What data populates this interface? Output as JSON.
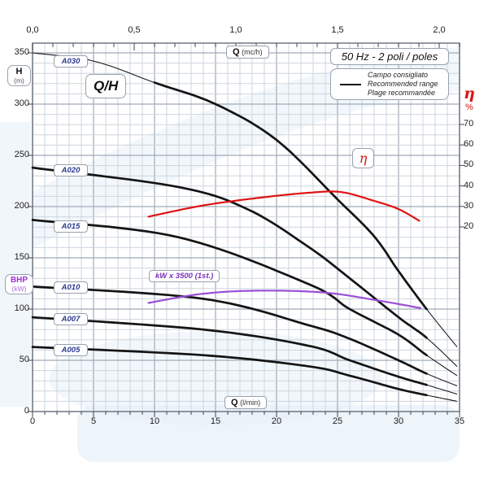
{
  "labels": {
    "qh": "Q/H",
    "h_main": "H",
    "h_sub": "(m)",
    "bhp_main": "BHP",
    "bhp_sub": "(kW)",
    "q_top_main": "Q",
    "q_top_sub": "(mc/h)",
    "q_bottom_main": "Q",
    "q_bottom_sub": "(l/min)",
    "title_box": "50 Hz - 2 poli / poles",
    "legend": {
      "line1": "Campo consigliato",
      "line2": "Recommended range",
      "line3": "Plage recommandée"
    },
    "eta_symbol": "η",
    "eta_percent": "%",
    "eta_badge": "η",
    "kw_badge": "kW x 3500 (1st.)"
  },
  "axes": {
    "top": {
      "unit": "mc/h",
      "ticks": [
        "0,0",
        "0,5",
        "1,0",
        "1,5",
        "2,0"
      ],
      "values": [
        0,
        0.5,
        1.0,
        1.5,
        2.0
      ]
    },
    "bottom": {
      "unit": "l/min",
      "ticks": [
        "0",
        "5",
        "10",
        "15",
        "20",
        "25",
        "30",
        "35"
      ],
      "values": [
        0,
        5,
        10,
        15,
        20,
        25,
        30,
        35
      ]
    },
    "left": {
      "unit": "m",
      "ticks": [
        "350",
        "300",
        "250",
        "200",
        "150",
        "100",
        "50",
        "0"
      ],
      "values": [
        350,
        300,
        250,
        200,
        150,
        100,
        50,
        0
      ]
    },
    "right": {
      "unit": "%",
      "ticks": [
        "70",
        "60",
        "50",
        "40",
        "30",
        "20"
      ],
      "values": [
        70,
        60,
        50,
        40,
        30,
        20
      ]
    }
  },
  "colors": {
    "curve_black": "#141414",
    "eta_red": "#e01212",
    "power_purple": "#9a4fd6",
    "model_navy": "#2b3990",
    "bhp_purple": "#9d2fd4",
    "grid_minor": "#cdd5de",
    "grid_major": "#9fabb9",
    "border": "#6e7884",
    "watermark_blue": "#e7f0f8"
  },
  "chart_data": {
    "type": "line",
    "title": "50 Hz - 2 poli / poles",
    "legend": [
      "Campo consigliato",
      "Recommended range",
      "Plage recommandée"
    ],
    "x_axis": {
      "label": "Q (l/min)",
      "range": [
        0,
        35
      ],
      "grid": true
    },
    "x_axis2": {
      "label": "Q (mc/h)",
      "range": [
        0,
        2.1
      ]
    },
    "y_axis": {
      "label": "H (m)",
      "range": [
        0,
        360
      ],
      "secondary_label": "BHP (kW)"
    },
    "y2_axis": {
      "label": "η %",
      "range": [
        20,
        70
      ]
    },
    "series": [
      {
        "name": "A030",
        "unit": "Q(l/min) vs H(m)",
        "thick_range": [
          10,
          32.3
        ],
        "points": [
          [
            0,
            350
          ],
          [
            5,
            342
          ],
          [
            10,
            321
          ],
          [
            15,
            300
          ],
          [
            20,
            265
          ],
          [
            25,
            207
          ],
          [
            28,
            171
          ],
          [
            30,
            137
          ],
          [
            32.3,
            100
          ],
          [
            34.8,
            63
          ]
        ]
      },
      {
        "name": "A020",
        "unit": "Q(l/min) vs H(m)",
        "thick_range": [
          0,
          32.3
        ],
        "points": [
          [
            0,
            238
          ],
          [
            12,
            219
          ],
          [
            17.7,
            197
          ],
          [
            22.7,
            160
          ],
          [
            26,
            130
          ],
          [
            30,
            92
          ],
          [
            32.3,
            72
          ],
          [
            34.8,
            44
          ]
        ]
      },
      {
        "name": "A015",
        "unit": "Q(l/min) vs H(m)",
        "thick_range": [
          0,
          32.3
        ],
        "points": [
          [
            0,
            187
          ],
          [
            12,
            170
          ],
          [
            22.7,
            124
          ],
          [
            26,
            100
          ],
          [
            30,
            75
          ],
          [
            32.3,
            55
          ],
          [
            34.8,
            35
          ]
        ]
      },
      {
        "name": "A010",
        "unit": "Q(l/min) vs H(m)",
        "thick_range": [
          0,
          32.3
        ],
        "points": [
          [
            0,
            122
          ],
          [
            14,
            110
          ],
          [
            22.7,
            84
          ],
          [
            26,
            71
          ],
          [
            30,
            50
          ],
          [
            32.3,
            37
          ],
          [
            34.8,
            25
          ]
        ]
      },
      {
        "name": "A007",
        "unit": "Q(l/min) vs H(m)",
        "thick_range": [
          0,
          32.3
        ],
        "points": [
          [
            0,
            92
          ],
          [
            14,
            80
          ],
          [
            22.7,
            64
          ],
          [
            26,
            50
          ],
          [
            30,
            34
          ],
          [
            32.3,
            26
          ],
          [
            34.8,
            17
          ]
        ]
      },
      {
        "name": "A005",
        "unit": "Q(l/min) vs H(m)",
        "thick_range": [
          0,
          32.3
        ],
        "points": [
          [
            0,
            63
          ],
          [
            14,
            55
          ],
          [
            22.7,
            44
          ],
          [
            26,
            35
          ],
          [
            30,
            22
          ],
          [
            32.3,
            16
          ],
          [
            34.8,
            10
          ]
        ]
      }
    ],
    "efficiency_curve": {
      "name": "η",
      "unit": "Q(l/min) vs η(%)",
      "points": [
        [
          9.5,
          25
        ],
        [
          14,
          30.5
        ],
        [
          18.7,
          34.3
        ],
        [
          22.7,
          36.7
        ],
        [
          25.3,
          37
        ],
        [
          28,
          32.7
        ],
        [
          30,
          28.7
        ],
        [
          31.7,
          23
        ]
      ]
    },
    "power_curve": {
      "name": "kW x 3500 (1st.)",
      "unit": "Q(l/min) vs BHP on left scale",
      "points": [
        [
          9.5,
          106
        ],
        [
          14,
          115
        ],
        [
          18.7,
          118
        ],
        [
          24,
          116
        ],
        [
          28.5,
          108
        ],
        [
          31.8,
          101
        ]
      ]
    }
  }
}
